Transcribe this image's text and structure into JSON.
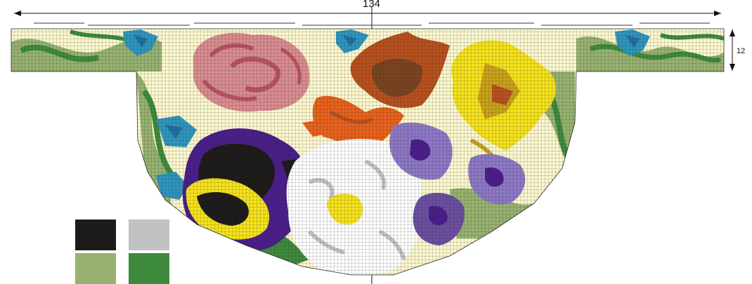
{
  "dimensions": {
    "width_label": "134",
    "height_label": "12"
  },
  "palette": {
    "background": "#fbf7cf",
    "grid_line": "#3a3a2a",
    "light_green": "#97b270",
    "dark_green": "#3e8a3c",
    "black": "#1d1a1a",
    "grey": "#c2c2c2",
    "white": "#ffffff",
    "pink_light": "#d98c90",
    "pink_dark": "#b85360",
    "blue": "#2f95bd",
    "blue_dark": "#1f6fa0",
    "orange": "#e8621d",
    "orange_dark": "#b8501e",
    "brown": "#7a4420",
    "yellow": "#f5e21c",
    "yellow_dark": "#c9a21a",
    "purple": "#4a1e8a",
    "lilac": "#8c78c6",
    "lilac_dark": "#6b4fa0"
  },
  "swatches": [
    {
      "name": "black",
      "color": "#1d1a1a"
    },
    {
      "name": "grey",
      "color": "#c2c2c2"
    },
    {
      "name": "light-green",
      "color": "#97b270"
    },
    {
      "name": "dark-green",
      "color": "#3e8a3c"
    }
  ]
}
